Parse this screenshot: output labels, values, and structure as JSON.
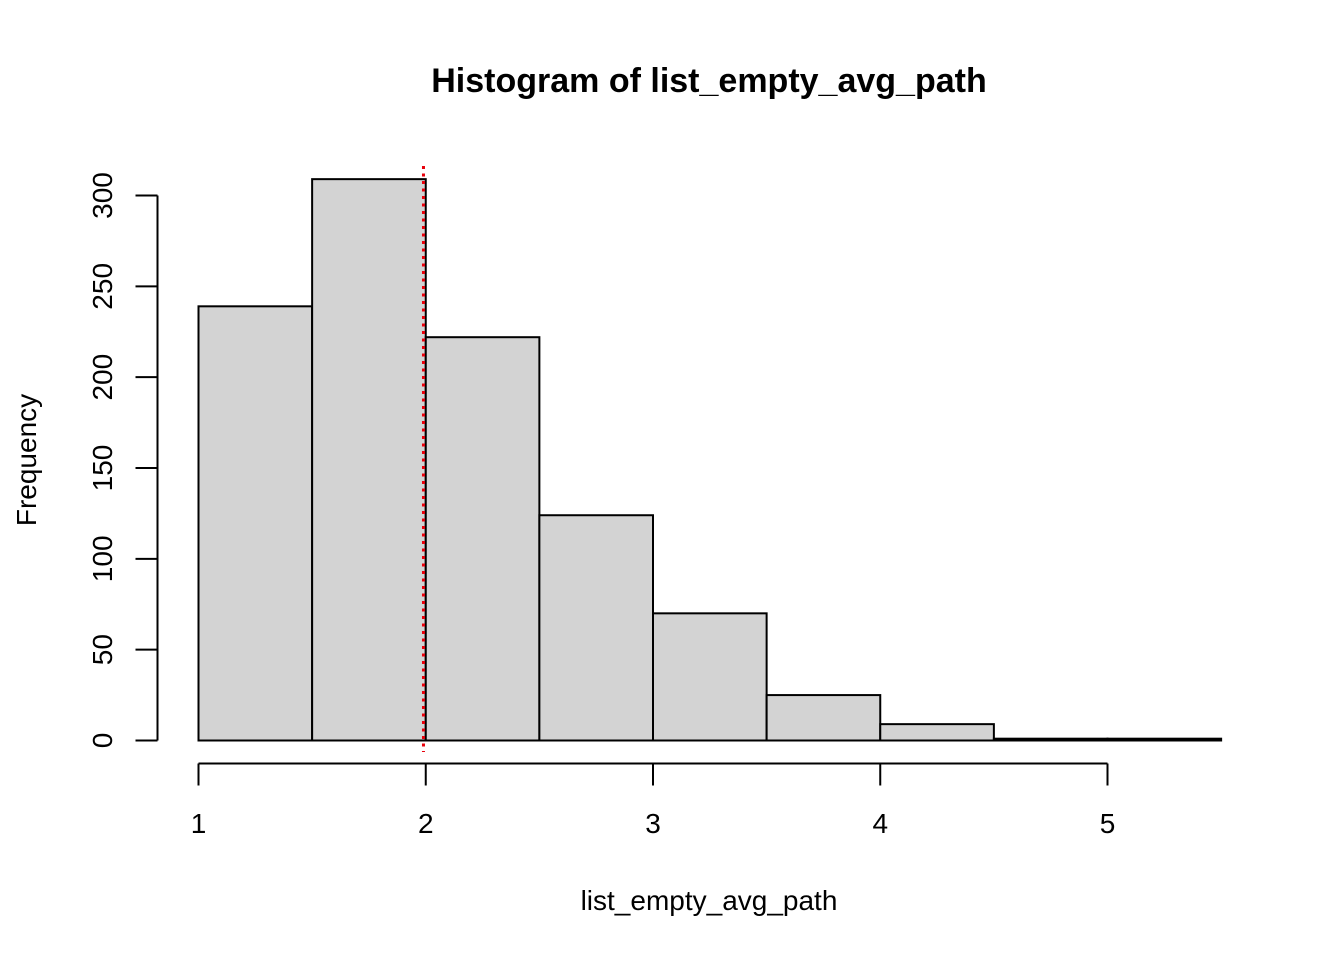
{
  "chart_data": {
    "type": "bar",
    "title": "Histogram of list_empty_avg_path",
    "xlabel": "list_empty_avg_path",
    "ylabel": "Frequency",
    "bins": [
      {
        "x0": 1.0,
        "x1": 1.5,
        "count": 239
      },
      {
        "x0": 1.5,
        "x1": 2.0,
        "count": 309
      },
      {
        "x0": 2.0,
        "x1": 2.5,
        "count": 222
      },
      {
        "x0": 2.5,
        "x1": 3.0,
        "count": 124
      },
      {
        "x0": 3.0,
        "x1": 3.5,
        "count": 70
      },
      {
        "x0": 3.5,
        "x1": 4.0,
        "count": 25
      },
      {
        "x0": 4.0,
        "x1": 4.5,
        "count": 9
      },
      {
        "x0": 4.5,
        "x1": 5.0,
        "count": 1
      },
      {
        "x0": 5.0,
        "x1": 5.5,
        "count": 1
      }
    ],
    "xticks": [
      1,
      2,
      3,
      4,
      5
    ],
    "xtick_labels": [
      "1",
      "2",
      "3",
      "4",
      "5"
    ],
    "yticks": [
      0,
      50,
      100,
      150,
      200,
      250,
      300
    ],
    "ytick_labels": [
      "0",
      "50",
      "100",
      "150",
      "200",
      "250",
      "300"
    ],
    "xlim": [
      1,
      5.5
    ],
    "ylim": [
      0,
      300
    ],
    "reference_line": {
      "x": 1.99,
      "style": "dotted"
    },
    "grid": false,
    "colors": {
      "bar_fill": "#d3d3d3",
      "bar_stroke": "#000000",
      "reference_line": "#e8000b",
      "axis": "#000000"
    }
  }
}
